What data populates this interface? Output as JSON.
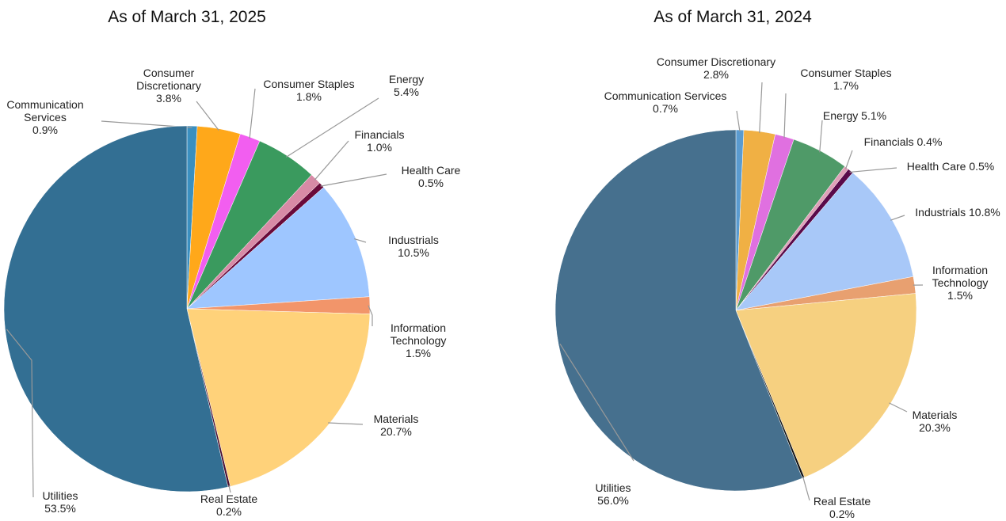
{
  "chart_data": [
    {
      "type": "pie",
      "title": "As of March 31, 2025",
      "categories": [
        "Communication Services",
        "Consumer Discretionary",
        "Consumer Staples",
        "Energy",
        "Financials",
        "Health Care",
        "Industrials",
        "Information Technology",
        "Materials",
        "Real Estate",
        "Utilities"
      ],
      "values": [
        0.9,
        3.8,
        1.8,
        5.4,
        1.0,
        0.5,
        10.5,
        1.5,
        20.7,
        0.2,
        53.5
      ],
      "value_labels": [
        "0.9%",
        "3.8%",
        "1.8%",
        "5.4%",
        "1.0%",
        "0.5%",
        "10.5%",
        "1.5%",
        "20.7%",
        "0.2%",
        "53.5%"
      ],
      "colors": [
        "#3a8fc0",
        "#ffa81a",
        "#f25ef0",
        "#3a9a5e",
        "#d88aa6",
        "#6a0a3a",
        "#9ec6ff",
        "#f2956a",
        "#ffd27a",
        "#4a1030",
        "#336f93"
      ]
    },
    {
      "type": "pie",
      "title": "As of March 31, 2024",
      "categories": [
        "Communication Services",
        "Consumer Discretionary",
        "Consumer Staples",
        "Energy",
        "Financials",
        "Health Care",
        "Industrials",
        "Information Technology",
        "Materials",
        "Real Estate",
        "Utilities"
      ],
      "values": [
        0.7,
        2.8,
        1.7,
        5.1,
        0.4,
        0.5,
        10.8,
        1.5,
        20.3,
        0.2,
        56.0
      ],
      "value_labels": [
        "0.7%",
        "2.8%",
        "1.7%",
        "5.1%",
        "0.4%",
        "0.5%",
        "10.8%",
        "1.5%",
        "20.3%",
        "0.2%",
        "56.0%"
      ],
      "colors": [
        "#5a9bd0",
        "#f0b044",
        "#e070e0",
        "#4f9a68",
        "#e0a0b8",
        "#5a0a4a",
        "#a8c8f8",
        "#e8a070",
        "#f6d080",
        "#111111",
        "#46708e"
      ]
    }
  ]
}
